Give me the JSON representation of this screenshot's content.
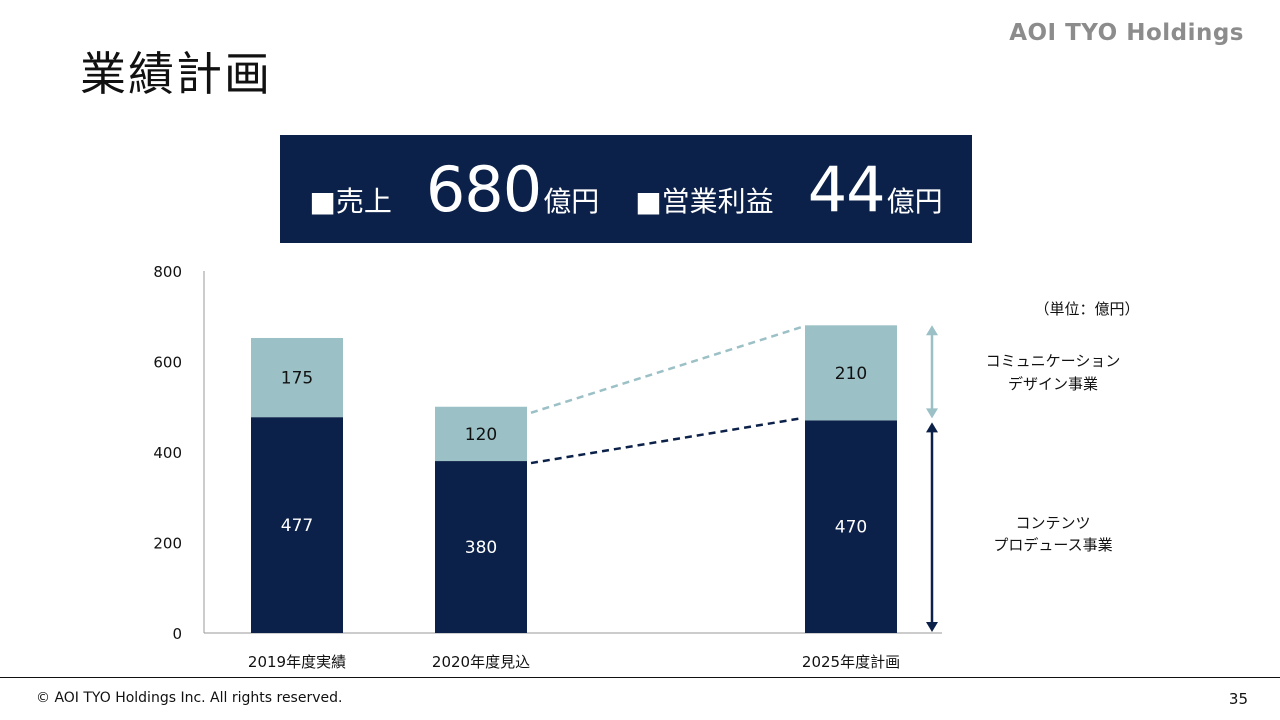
{
  "slide": {
    "title": "業績計画",
    "brand": "AOI TYO Holdings",
    "copyright": "© AOI TYO Holdings Inc. All rights reserved.",
    "page_number": "35"
  },
  "summary": {
    "sales_label": "■売上",
    "sales_value": "680",
    "sales_unit": "億円",
    "profit_label": "■営業利益",
    "profit_value": "44",
    "profit_unit": "億円"
  },
  "colors": {
    "navy": "#0c2149",
    "light_teal": "#9bc0c6"
  },
  "chart_data": {
    "type": "bar",
    "stacked": true,
    "unit_note": "（単位：億円）",
    "categories": [
      "2019年度実績",
      "2020年度見込",
      "2025年度計画"
    ],
    "ylim": [
      0,
      800
    ],
    "yticks": [
      0,
      200,
      400,
      600,
      800
    ],
    "series": [
      {
        "name": "コンテンツプロデュース事業",
        "color": "#0c2149",
        "values": [
          477,
          380,
          470
        ]
      },
      {
        "name": "コミュニケーションデザイン事業",
        "color": "#9bc0c6",
        "values": [
          175,
          120,
          210
        ]
      }
    ],
    "segment_labels": [
      {
        "line1": "コミュニケーション",
        "line2": "デザイン事業"
      },
      {
        "line1": "コンテンツ",
        "line2": "プロデュース事業"
      }
    ]
  }
}
